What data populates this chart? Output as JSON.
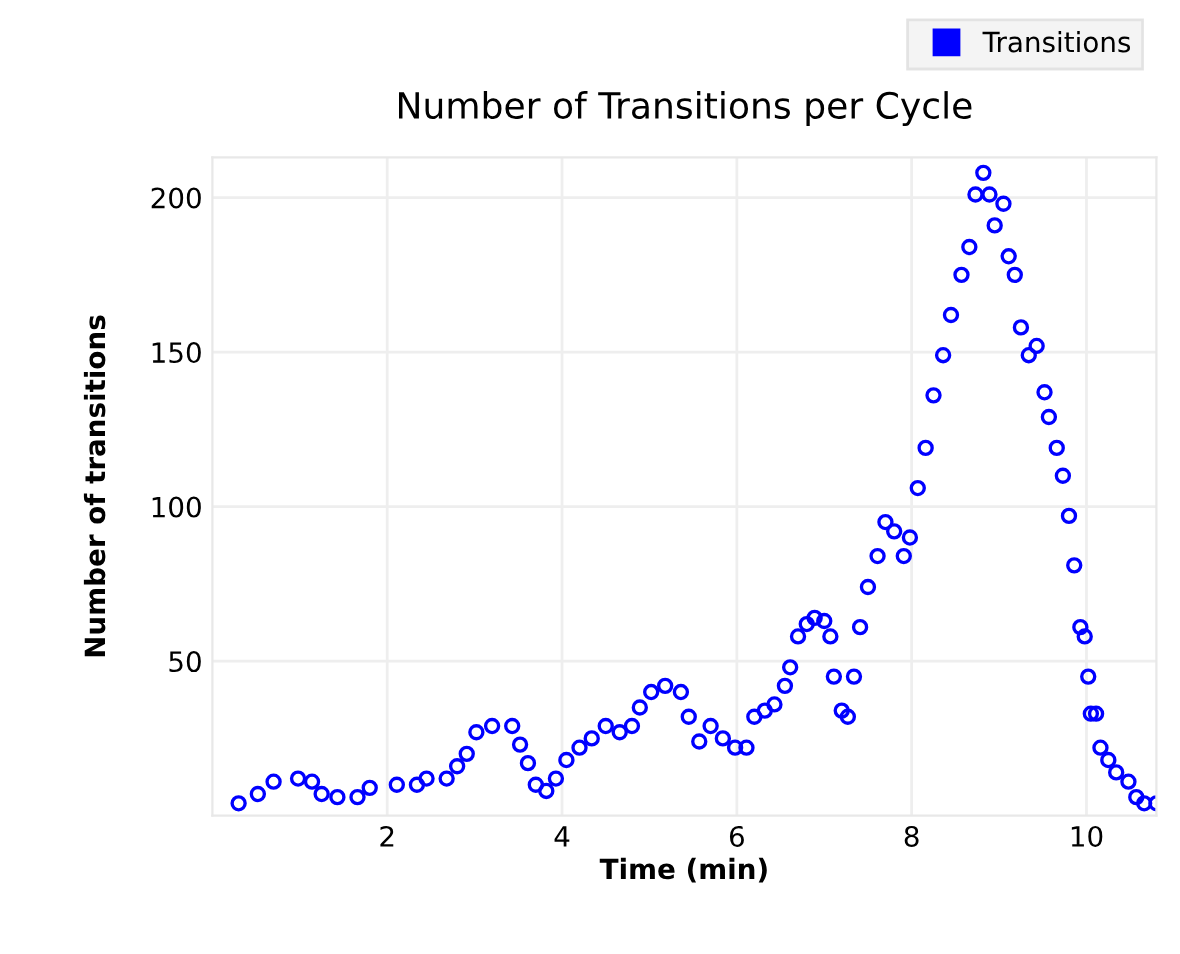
{
  "chart_data": {
    "type": "scatter",
    "title": "Number of Transitions per Cycle",
    "xlabel": "Time (min)",
    "ylabel": "Number of transitions",
    "xlim": [
      0,
      10.8
    ],
    "xticks": [
      2,
      4,
      6,
      8,
      10
    ],
    "ylim": [
      0,
      213
    ],
    "yticks": [
      50,
      100,
      150,
      200
    ],
    "grid": true,
    "legend": "top right",
    "marker": "circle",
    "series": [
      {
        "name": "Transitions",
        "color": "#0000ff",
        "x": [
          0.3,
          0.52,
          0.7,
          0.98,
          1.14,
          1.25,
          1.43,
          1.66,
          1.8,
          2.11,
          2.34,
          2.45,
          2.68,
          2.8,
          2.91,
          3.02,
          3.2,
          3.43,
          3.52,
          3.61,
          3.7,
          3.82,
          3.93,
          4.05,
          4.2,
          4.34,
          4.5,
          4.66,
          4.8,
          4.89,
          5.02,
          5.18,
          5.36,
          5.45,
          5.57,
          5.7,
          5.84,
          5.98,
          6.11,
          6.2,
          6.32,
          6.43,
          6.55,
          6.61,
          6.7,
          6.8,
          6.89,
          7.0,
          7.07,
          7.11,
          7.2,
          7.27,
          7.34,
          7.41,
          7.5,
          7.61,
          7.7,
          7.8,
          7.91,
          7.98,
          8.07,
          8.16,
          8.25,
          8.36,
          8.45,
          8.57,
          8.66,
          8.73,
          8.82,
          8.89,
          8.95,
          9.05,
          9.11,
          9.18,
          9.25,
          9.34,
          9.43,
          9.52,
          9.57,
          9.66,
          9.73,
          9.8,
          9.86,
          9.93,
          9.98,
          10.02,
          10.05,
          10.11,
          10.16,
          10.25,
          10.34,
          10.48,
          10.57,
          10.66,
          10.8
        ],
        "values": [
          4,
          7,
          11,
          12,
          11,
          7,
          6,
          6,
          9,
          10,
          10,
          12,
          12,
          16,
          20,
          27,
          29,
          29,
          23,
          17,
          10,
          8,
          12,
          18,
          22,
          25,
          29,
          27,
          29,
          35,
          40,
          42,
          40,
          32,
          24,
          29,
          25,
          22,
          22,
          32,
          34,
          36,
          42,
          48,
          58,
          62,
          64,
          63,
          58,
          45,
          34,
          32,
          45,
          61,
          74,
          84,
          95,
          92,
          84,
          90,
          106,
          119,
          136,
          149,
          162,
          175,
          184,
          201,
          208,
          201,
          191,
          198,
          181,
          175,
          158,
          149,
          152,
          137,
          129,
          119,
          110,
          97,
          81,
          61,
          58,
          45,
          33,
          33,
          22,
          18,
          14,
          11,
          6,
          4,
          4
        ]
      }
    ]
  }
}
